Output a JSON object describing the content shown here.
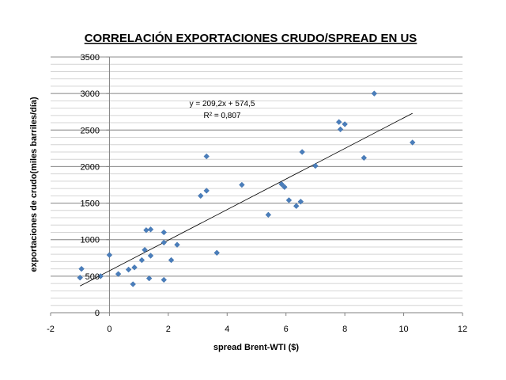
{
  "chart_data": {
    "type": "scatter",
    "title": "CORRELACIÓN EXPORTACIONES CRUDO/SPREAD EN US",
    "xlabel": "spread Brent-WTI ($)",
    "ylabel": "exportaciones de crudo(miles barriles/día)",
    "xlim": [
      -2,
      12
    ],
    "ylim": [
      0,
      3500
    ],
    "x_ticks": [
      -2,
      0,
      2,
      4,
      6,
      8,
      10,
      12
    ],
    "y_ticks": [
      0,
      500,
      1000,
      1500,
      2000,
      2500,
      3000,
      3500
    ],
    "y_minor_step": 100,
    "grid": "horizontal",
    "legend": "none",
    "marker_color": "#4a7ebb",
    "trendline": {
      "slope": 209.2,
      "intercept": 574.5,
      "x_range": [
        -1.0,
        10.3
      ],
      "equation_label": "y = 209,2x + 574,5",
      "r2_label": "R² = 0,807"
    },
    "points": [
      {
        "x": -1.0,
        "y": 480
      },
      {
        "x": -0.95,
        "y": 600
      },
      {
        "x": -0.3,
        "y": 500
      },
      {
        "x": 0.0,
        "y": 790
      },
      {
        "x": 0.3,
        "y": 530
      },
      {
        "x": 0.65,
        "y": 590
      },
      {
        "x": 0.8,
        "y": 390
      },
      {
        "x": 0.85,
        "y": 620
      },
      {
        "x": 1.1,
        "y": 720
      },
      {
        "x": 1.2,
        "y": 860
      },
      {
        "x": 1.25,
        "y": 1130
      },
      {
        "x": 1.35,
        "y": 470
      },
      {
        "x": 1.4,
        "y": 780
      },
      {
        "x": 1.4,
        "y": 1140
      },
      {
        "x": 1.85,
        "y": 450
      },
      {
        "x": 1.85,
        "y": 960
      },
      {
        "x": 1.85,
        "y": 1100
      },
      {
        "x": 2.1,
        "y": 720
      },
      {
        "x": 2.3,
        "y": 930
      },
      {
        "x": 3.1,
        "y": 1600
      },
      {
        "x": 3.3,
        "y": 1670
      },
      {
        "x": 3.3,
        "y": 2140
      },
      {
        "x": 3.65,
        "y": 820
      },
      {
        "x": 4.5,
        "y": 1750
      },
      {
        "x": 5.4,
        "y": 1340
      },
      {
        "x": 5.85,
        "y": 1760
      },
      {
        "x": 5.95,
        "y": 1720
      },
      {
        "x": 6.1,
        "y": 1540
      },
      {
        "x": 6.35,
        "y": 1460
      },
      {
        "x": 6.5,
        "y": 1520
      },
      {
        "x": 6.55,
        "y": 2200
      },
      {
        "x": 7.0,
        "y": 2010
      },
      {
        "x": 7.8,
        "y": 2610
      },
      {
        "x": 7.85,
        "y": 2510
      },
      {
        "x": 8.0,
        "y": 2580
      },
      {
        "x": 8.65,
        "y": 2120
      },
      {
        "x": 9.0,
        "y": 3000
      },
      {
        "x": 10.3,
        "y": 2330
      }
    ]
  }
}
